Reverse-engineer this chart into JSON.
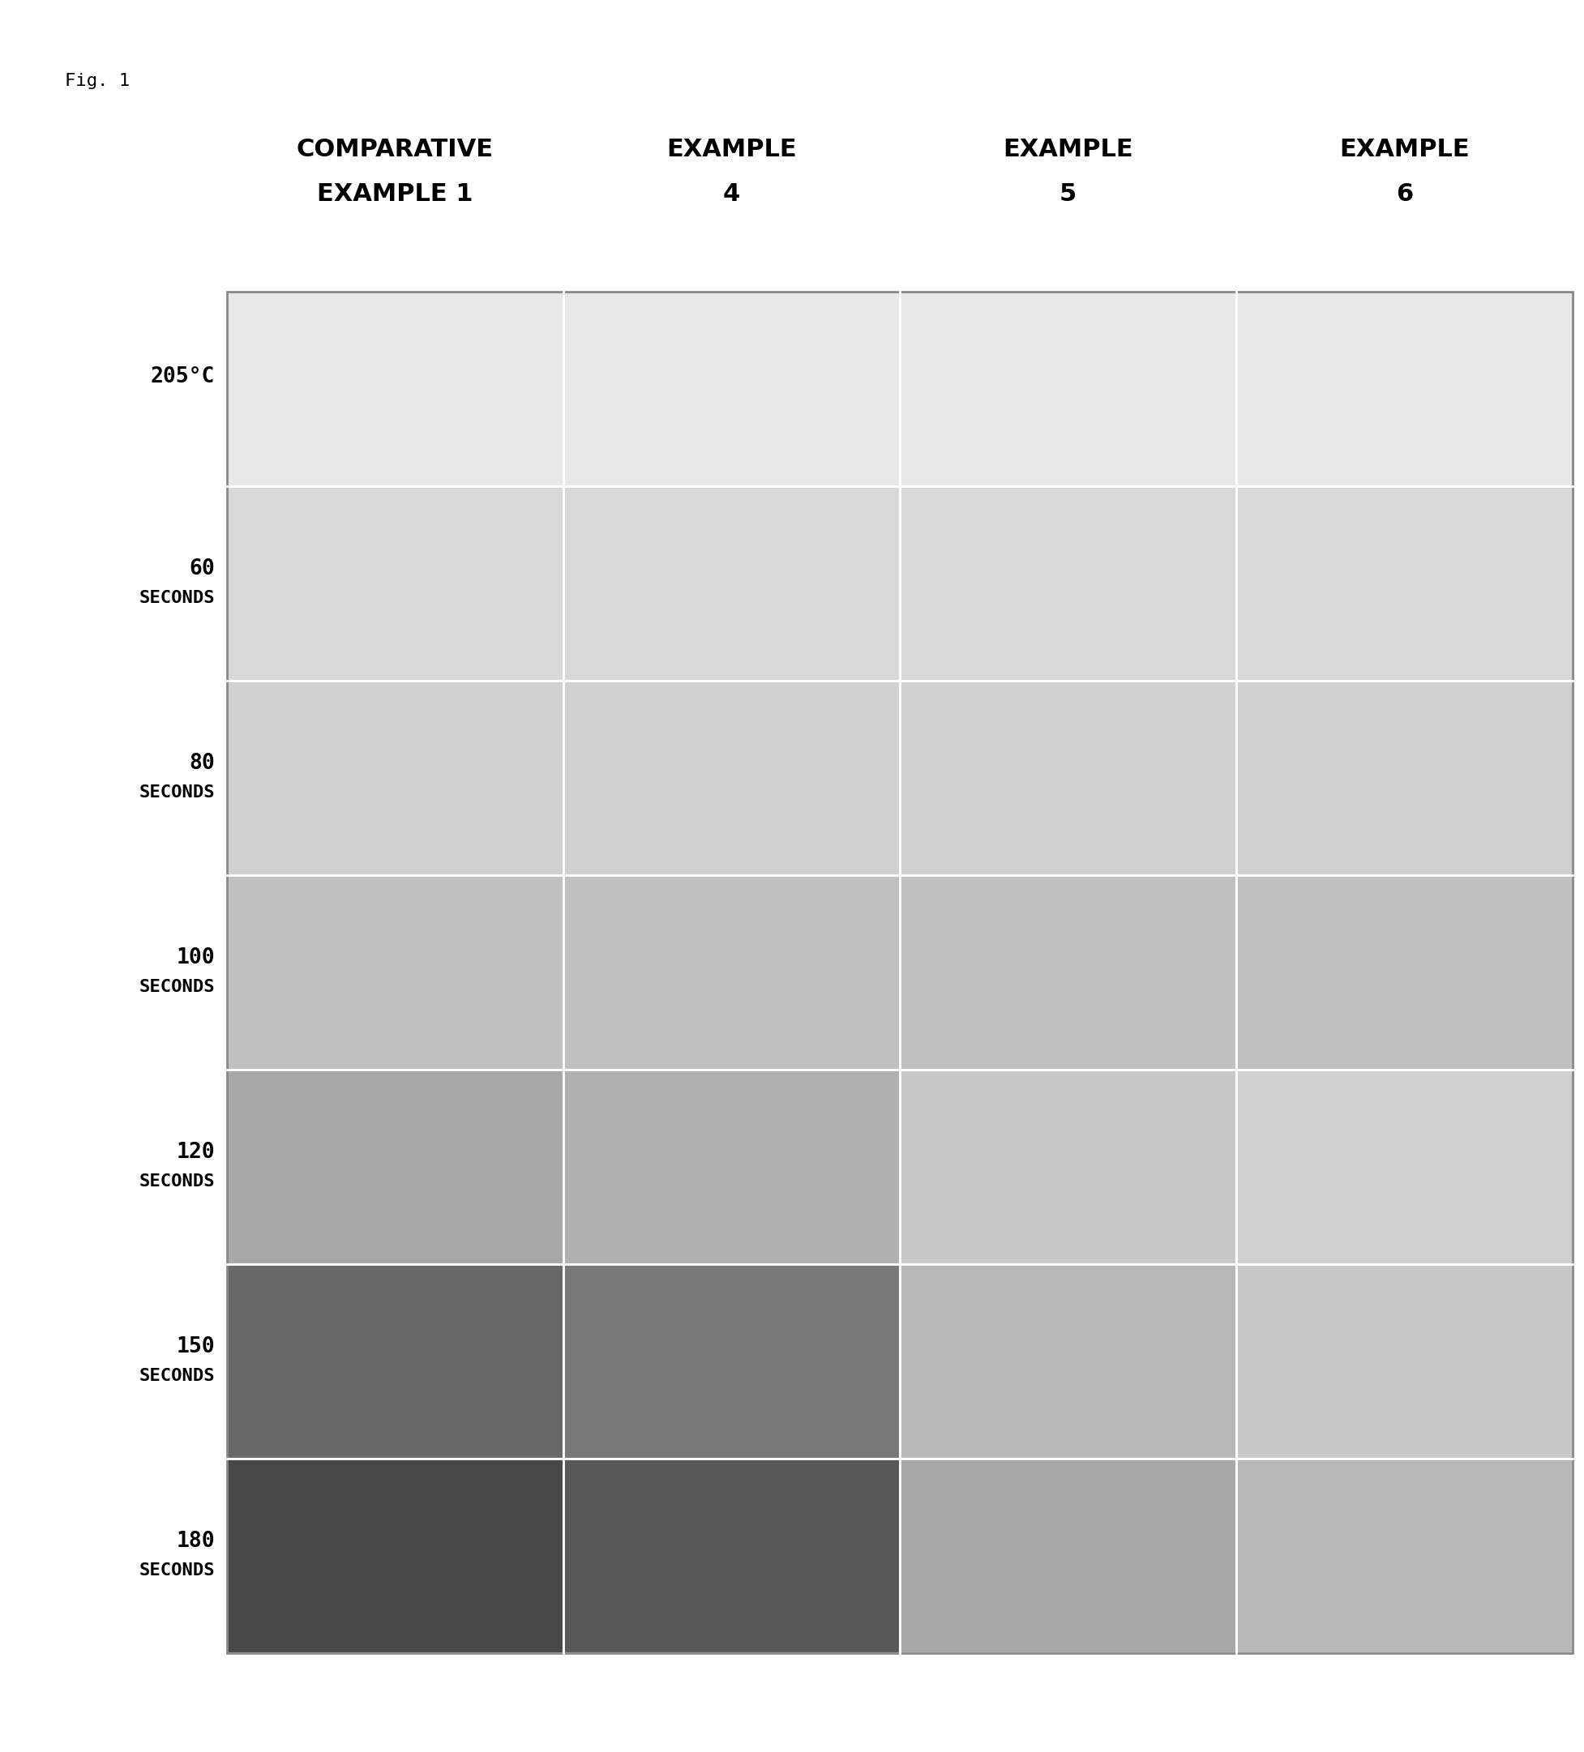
{
  "fig_label": "Fig. 1",
  "columns": [
    "COMPARATIVE\nEXAMPLE 1",
    "EXAMPLE\n4",
    "EXAMPLE\n5",
    "EXAMPLE\n6"
  ],
  "rows": [
    "205°C",
    "60\nSECONDS",
    "80\nSECONDS",
    "100\nSECONDS",
    "120\nSECONDS",
    "150\nSECONDS",
    "180\nSECONDS"
  ],
  "cell_colors": [
    [
      "#e8e8e8",
      "#e8e8e8",
      "#e8e8e8",
      "#e8e8e8"
    ],
    [
      "#d8d8d8",
      "#d8d8d8",
      "#d8d8d8",
      "#d8d8d8"
    ],
    [
      "#d0d0d0",
      "#d0d0d0",
      "#d0d0d0",
      "#d0d0d0"
    ],
    [
      "#c0c0c0",
      "#c0c0c0",
      "#c0c0c0",
      "#c0c0c0"
    ],
    [
      "#a8a8a8",
      "#b0b0b0",
      "#c8c8c8",
      "#d0d0d0"
    ],
    [
      "#686868",
      "#787878",
      "#b8b8b8",
      "#c8c8c8"
    ],
    [
      "#484848",
      "#585858",
      "#a8a8a8",
      "#b8b8b8"
    ]
  ],
  "background_color": "#ffffff",
  "border_color": "#000000",
  "grid_color": "#ffffff",
  "title_fontsize": 22,
  "label_fontsize": 18,
  "fig_label_fontsize": 16,
  "col_header_fontsize": 19,
  "row_label_fontsize": 17
}
